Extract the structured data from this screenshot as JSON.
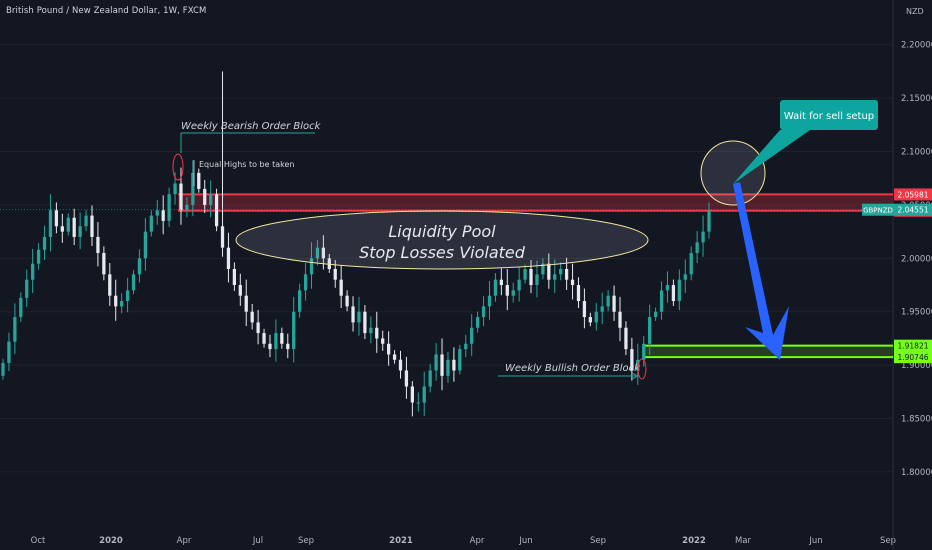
{
  "header": {
    "title": "British Pound / New Zealand Dollar, 1W, FXCM",
    "currency": "NZD"
  },
  "colors": {
    "background": "#131722",
    "up": "#26a69a",
    "down": "#e6e9ef",
    "grid": "#1e222d",
    "axis_text": "#b2b5be",
    "red": "#f23645",
    "green": "#76ff1a",
    "teal": "#0ea59e",
    "blue": "#2962ff"
  },
  "chart_data": {
    "type": "candlestick",
    "symbol": "GBPNZD",
    "timeframe": "1W",
    "y_axis": {
      "ylim": [
        1.755,
        2.225
      ],
      "ticks": [
        "2.20000",
        "2.15000",
        "2.10000",
        "2.05000",
        "2.00000",
        "1.95000",
        "1.90000",
        "1.85000",
        "1.80000"
      ]
    },
    "x_axis": {
      "ticks": [
        "Oct",
        "2020",
        "Apr",
        "Jul",
        "Sep",
        "2021",
        "Apr",
        "Jun",
        "Sep",
        "2022",
        "Mar",
        "Jun",
        "Sep"
      ]
    },
    "closes": [
      1.902,
      1.922,
      1.945,
      1.963,
      1.98,
      1.995,
      2.008,
      2.02,
      2.045,
      2.03,
      2.025,
      2.038,
      2.02,
      2.03,
      2.04,
      2.02,
      2.005,
      1.985,
      1.965,
      1.955,
      1.96,
      1.97,
      1.985,
      2.0,
      2.025,
      2.04,
      2.045,
      2.035,
      2.06,
      2.07,
      2.045,
      2.05,
      2.08,
      2.065,
      2.05,
      2.06,
      2.03,
      2.01,
      1.99,
      1.975,
      1.965,
      1.95,
      1.94,
      1.93,
      1.92,
      1.915,
      1.93,
      1.92,
      1.915,
      1.95,
      1.97,
      1.985,
      2.0,
      2.01,
      2.0,
      1.99,
      1.98,
      1.965,
      1.955,
      1.94,
      1.95,
      1.93,
      1.935,
      1.925,
      1.92,
      1.91,
      1.905,
      1.895,
      1.88,
      1.865,
      1.865,
      1.88,
      1.895,
      1.91,
      1.89,
      1.905,
      1.895,
      1.915,
      1.92,
      1.935,
      1.945,
      1.955,
      1.965,
      1.98,
      1.975,
      1.965,
      1.97,
      1.98,
      1.99,
      1.975,
      1.985,
      1.995,
      1.98,
      1.985,
      1.99,
      1.98,
      1.975,
      1.96,
      1.945,
      1.94,
      1.95,
      1.955,
      1.965,
      1.95,
      1.935,
      1.915,
      1.895,
      1.905,
      1.92,
      1.945,
      1.95,
      1.97,
      1.975,
      1.96,
      1.98,
      1.985,
      2.005,
      2.015,
      2.025,
      2.045
    ],
    "levels": [
      {
        "value": 2.05981,
        "label": "2.05981",
        "color": "#f23645"
      },
      {
        "value": 2.04454,
        "label": "2.04454",
        "color": "#f23645"
      },
      {
        "value": 1.91821,
        "label": "1.91821",
        "color": "#76ff1a"
      },
      {
        "value": 1.90746,
        "label": "1.90746",
        "color": "#76ff1a"
      }
    ],
    "last_price": {
      "symbol": "GBPNZD",
      "value": 2.04551,
      "label": "2.04551"
    },
    "annotations": {
      "bearish_block": "Weekly Bearish Order Block",
      "equal_highs": "Equal Highs to be taken",
      "pool_line1": "Liquidity Pool",
      "pool_line2": "Stop Losses Violated",
      "bullish_block": "Weekly Bullish Order Block",
      "callout": "Wait for sell setup"
    }
  }
}
